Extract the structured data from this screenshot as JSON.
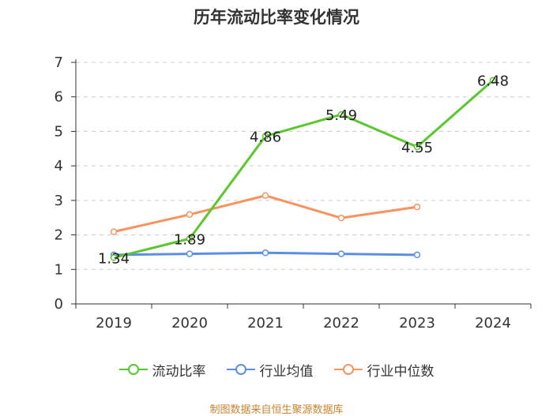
{
  "chart_data": {
    "type": "line",
    "title": "历年流动比率变化情况",
    "categories": [
      "2019",
      "2020",
      "2021",
      "2022",
      "2023",
      "2024"
    ],
    "ylim": [
      0,
      7
    ],
    "yticks": [
      0,
      1,
      2,
      3,
      4,
      5,
      6,
      7
    ],
    "series": [
      {
        "name": "流动比率",
        "color": "#5ac72e",
        "show_labels": true,
        "values": [
          1.34,
          1.89,
          4.86,
          5.49,
          4.55,
          6.48
        ]
      },
      {
        "name": "行业均值",
        "color": "#5b8ee6",
        "show_labels": false,
        "values": [
          1.42,
          1.45,
          1.48,
          1.45,
          1.42,
          null
        ]
      },
      {
        "name": "行业中位数",
        "color": "#f7945e",
        "show_labels": false,
        "values": [
          2.09,
          2.59,
          3.14,
          2.49,
          2.81,
          null
        ]
      }
    ],
    "legend_position": "bottom"
  },
  "source_text": "制图数据来自恒生聚源数据库"
}
